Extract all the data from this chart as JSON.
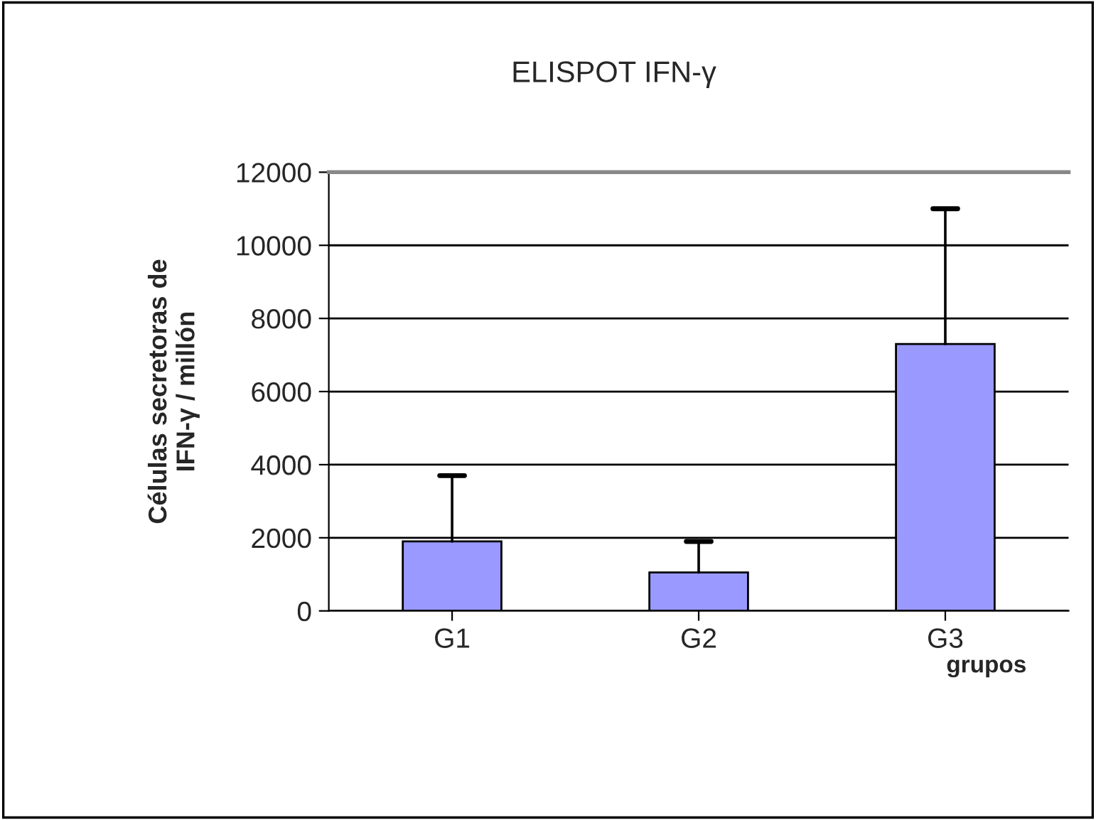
{
  "chart_data": {
    "type": "bar",
    "title": "ELISPOT IFN-γ",
    "xlabel": "grupos",
    "ylabel": "Células secretoras de\nIFN-γ / millón",
    "categories": [
      "G1",
      "G2",
      "G3"
    ],
    "values": [
      1900,
      1050,
      7300
    ],
    "errors": [
      [
        1900,
        3700
      ],
      [
        1050,
        1900
      ],
      [
        7300,
        11000
      ]
    ],
    "color": "#9999ff",
    "ylim": [
      0,
      12000
    ],
    "yticks": [
      0,
      2000,
      4000,
      6000,
      8000,
      10000,
      12000
    ],
    "grid": "y",
    "legend": false
  }
}
